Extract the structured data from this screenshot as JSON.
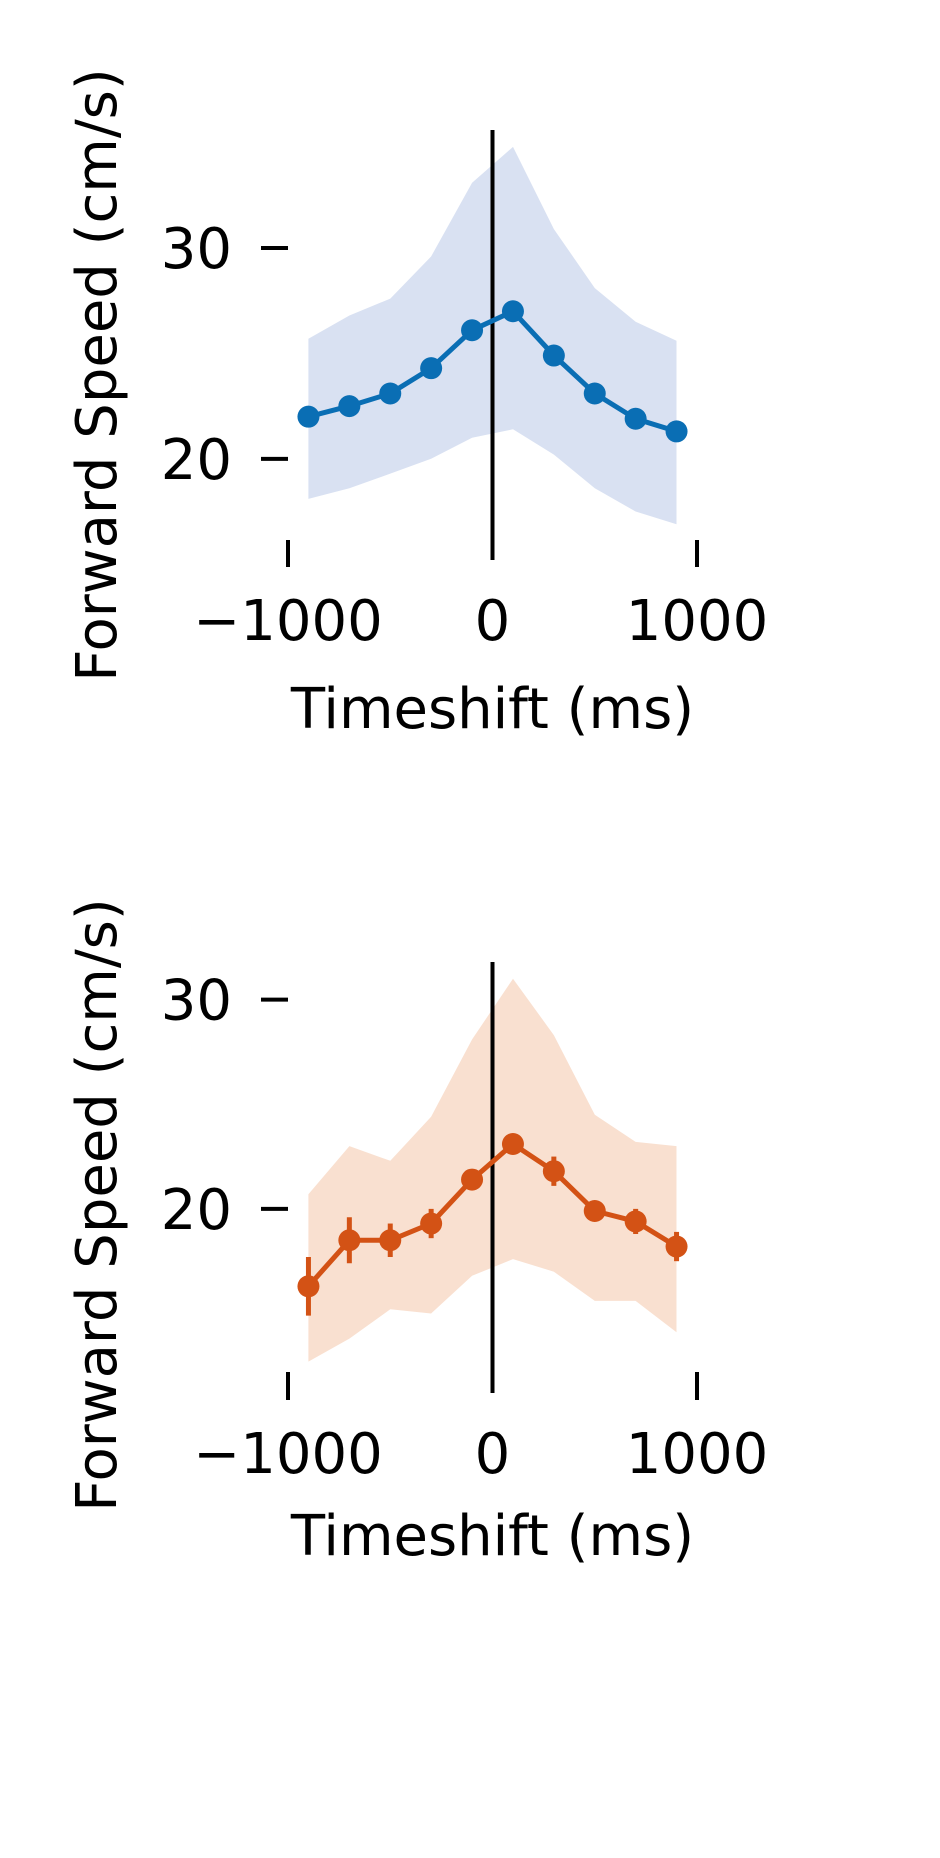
{
  "colors": {
    "panel_1_line": "#0a6eb4",
    "panel_1_band": "#d9e1f2",
    "panel_2_line": "#d35215",
    "panel_2_band": "#f9e0d0",
    "axis": "#000000"
  },
  "chart_data": [
    {
      "type": "line",
      "xlabel": "Timeshift (ms)",
      "ylabel": "Forward Speed (cm/s)",
      "xlim": [
        -1000,
        1000
      ],
      "ylim": [
        15.2,
        35.6
      ],
      "xticks": [
        -1000,
        0,
        1000
      ],
      "xtick_labels": [
        "−1000",
        "0",
        "1000"
      ],
      "yticks": [
        20,
        30
      ],
      "ytick_labels": [
        "20",
        "30"
      ],
      "vline_x": 0,
      "grid": false,
      "legend": "none",
      "series": [
        {
          "x": [
            -900,
            -700,
            -500,
            -300,
            -100,
            100,
            300,
            500,
            700,
            900
          ],
          "y": [
            22.0,
            22.5,
            23.1,
            24.3,
            26.1,
            27.0,
            24.9,
            23.1,
            21.9,
            21.3
          ],
          "band_lower": [
            18.1,
            18.6,
            19.3,
            20.0,
            21.0,
            21.4,
            20.2,
            18.6,
            17.5,
            16.9
          ],
          "band_upper": [
            25.7,
            26.8,
            27.6,
            29.6,
            33.1,
            34.8,
            30.9,
            28.1,
            26.5,
            25.6
          ]
        }
      ]
    },
    {
      "type": "line",
      "xlabel": "Timeshift (ms)",
      "ylabel": "Forward Speed (cm/s)",
      "xlim": [
        -1000,
        1000
      ],
      "ylim": [
        11.2,
        31.8
      ],
      "xticks": [
        -1000,
        0,
        1000
      ],
      "xtick_labels": [
        "−1000",
        "0",
        "1000"
      ],
      "yticks": [
        20,
        30
      ],
      "ytick_labels": [
        "20",
        "30"
      ],
      "vline_x": 0,
      "grid": false,
      "legend": "none",
      "series": [
        {
          "x": [
            -900,
            -700,
            -500,
            -300,
            -100,
            100,
            300,
            500,
            700,
            900
          ],
          "y": [
            16.3,
            18.5,
            18.5,
            19.3,
            21.4,
            23.1,
            21.8,
            19.9,
            19.4,
            18.2
          ],
          "yerr": [
            1.4,
            1.1,
            0.8,
            0.7,
            0.5,
            0.5,
            0.7,
            0.5,
            0.6,
            0.7
          ],
          "band_lower": [
            12.7,
            13.8,
            15.2,
            15.0,
            16.8,
            17.6,
            17.0,
            15.6,
            15.6,
            14.1
          ],
          "band_upper": [
            20.7,
            23.0,
            22.3,
            24.4,
            28.1,
            31.0,
            28.3,
            24.5,
            23.2,
            23.0
          ]
        }
      ]
    }
  ]
}
